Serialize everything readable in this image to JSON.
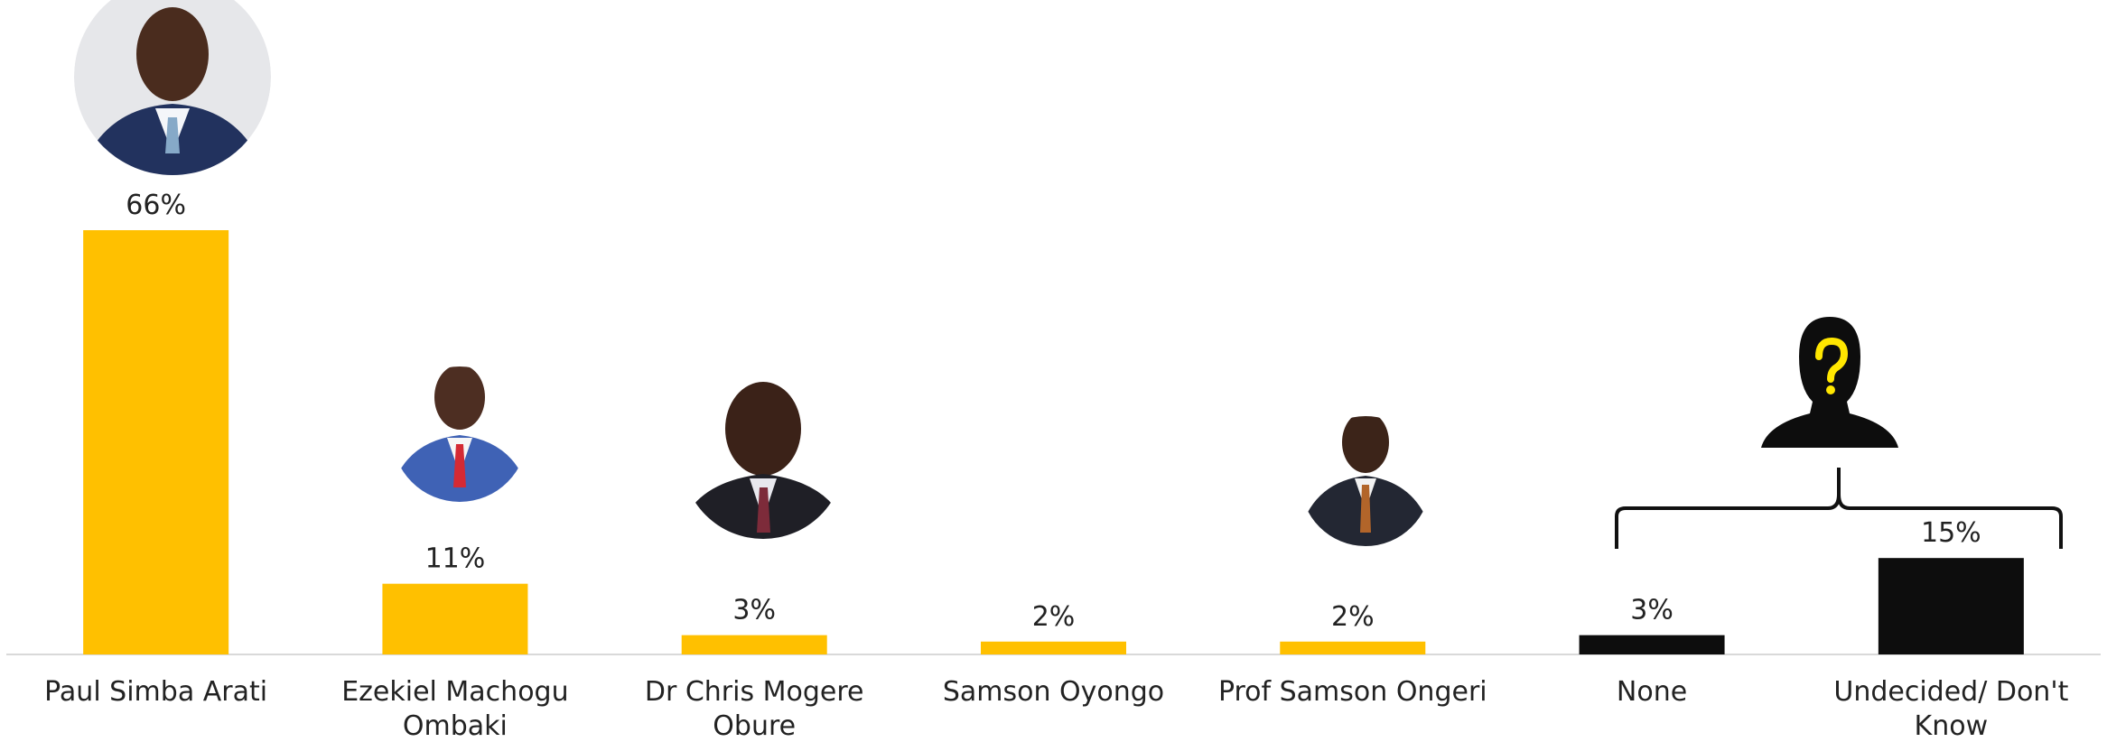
{
  "chart_data": {
    "type": "bar",
    "categories": [
      "Paul Simba Arati",
      "Ezekiel Machogu Ombaki",
      "Dr Chris Mogere Obure",
      "Samson Oyongo",
      "Prof Samson Ongeri",
      "None",
      "Undecided/ Don't Know"
    ],
    "values": [
      66,
      11,
      3,
      2,
      2,
      3,
      15
    ],
    "value_labels": [
      "66%",
      "11%",
      "3%",
      "2%",
      "2%",
      "3%",
      "15%"
    ],
    "colors": [
      "#FFC000",
      "#FFC000",
      "#FFC000",
      "#FFC000",
      "#FFC000",
      "#0d0d0d",
      "#0d0d0d"
    ]
  }
}
